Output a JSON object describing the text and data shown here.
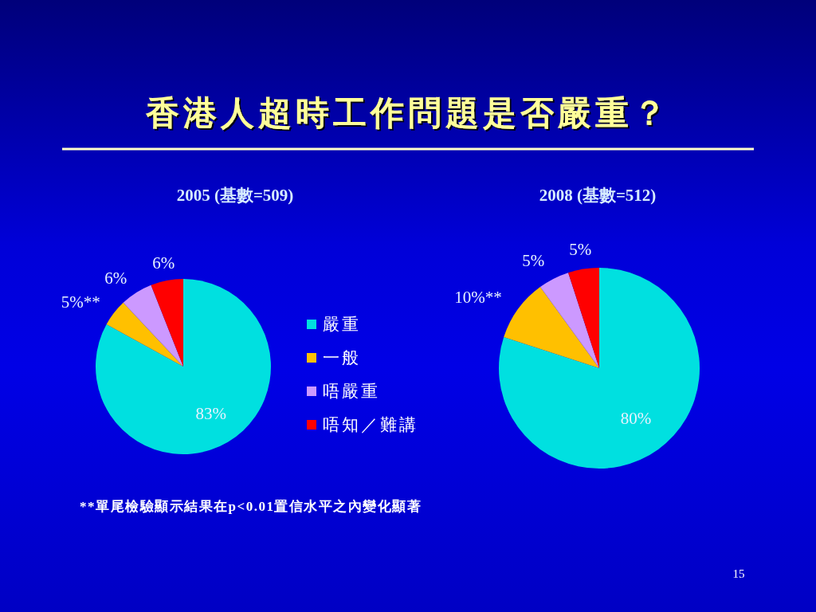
{
  "chart_data": [
    {
      "type": "pie",
      "title": "香港人超時工作問題是否嚴重？",
      "subtitle": "2005 (基數=509)",
      "categories": [
        "嚴重",
        "一般",
        "唔嚴重",
        "唔知／難講"
      ],
      "values": [
        83,
        5,
        6,
        6
      ],
      "colors": [
        "#00e0e0",
        "#ffc000",
        "#cc99ff",
        "#ff0000"
      ],
      "value_labels": [
        "83%",
        "5%**",
        "6%",
        "6%"
      ],
      "legend": "right",
      "annotations": [
        "**單尾檢驗顯示結果在p<0.01置信水平之內變化顯著"
      ]
    },
    {
      "type": "pie",
      "subtitle": "2008 (基數=512)",
      "categories": [
        null,
        null,
        null,
        null
      ],
      "values": [
        80,
        10,
        5,
        5
      ],
      "colors": [
        "#00e0e0",
        "#ffc000",
        "#cc99ff",
        "#ff0000"
      ],
      "value_labels": [
        "80%",
        "10%**",
        "5%",
        "5%"
      ],
      "annotations": [
        "15"
      ]
    }
  ]
}
